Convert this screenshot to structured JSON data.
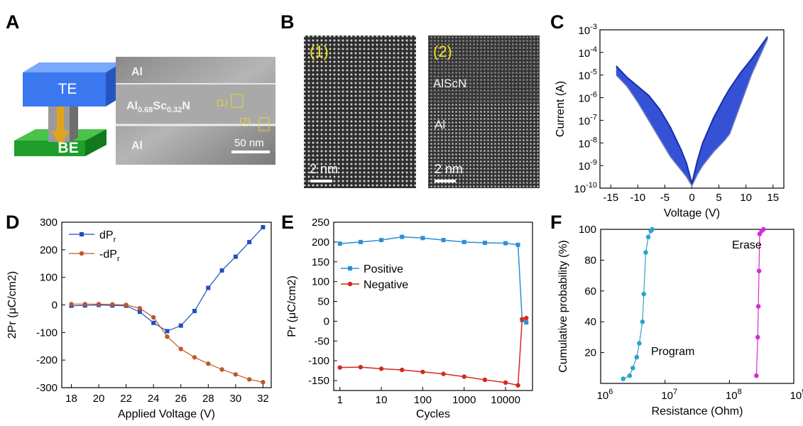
{
  "panels": {
    "A": {
      "label": "A",
      "device": {
        "top_electrode": "TE",
        "bottom_electrode": "BE"
      },
      "tem": {
        "layer_top": "Al",
        "layer_mid_base": "Al",
        "layer_mid_sub1": "0.68",
        "layer_mid_mid": "Sc",
        "layer_mid_sub2": "0.32",
        "layer_mid_end": "N",
        "layer_bot": "Al",
        "marker1": "(1)",
        "marker2": "(2)",
        "scalebar": "50 nm"
      }
    },
    "B": {
      "label": "B",
      "img1": {
        "tag": "(1)",
        "scalebar": "2 nm"
      },
      "img2": {
        "tag": "(2)",
        "layer1": "AlScN",
        "layer2": "Al",
        "scalebar": "2 nm"
      }
    },
    "C": {
      "label": "C"
    },
    "D": {
      "label": "D"
    },
    "E": {
      "label": "E"
    },
    "F": {
      "label": "F"
    }
  },
  "chart_data": [
    {
      "id": "C",
      "type": "line",
      "xlabel": "Voltage (V)",
      "ylabel": "Current (A)",
      "xlim": [
        -17,
        17
      ],
      "ylim_log10": [
        -10,
        -3
      ],
      "log_y": true,
      "xticks": [
        -15,
        -10,
        -5,
        0,
        5,
        10,
        15
      ],
      "yticks_exp": [
        -10,
        -9,
        -8,
        -7,
        -6,
        -5,
        -4,
        -3
      ],
      "color": "#1f3fd1",
      "series": [
        {
          "x": [
            -14,
            -12,
            -10,
            -8,
            -6,
            -4,
            -2,
            -1,
            0,
            1,
            2,
            4,
            6,
            7,
            9,
            11,
            14
          ],
          "log10_y_upper": [
            -4.6,
            -5.1,
            -5.5,
            -5.9,
            -6.5,
            -7.3,
            -8.3,
            -8.9,
            -9.8,
            -8.8,
            -8.0,
            -6.9,
            -6.0,
            -5.6,
            -4.9,
            -4.3,
            -3.3
          ],
          "log10_y_lower": [
            -5.0,
            -5.5,
            -6.2,
            -7.0,
            -7.8,
            -8.6,
            -9.2,
            -9.5,
            -9.9,
            -9.4,
            -9.0,
            -8.4,
            -7.9,
            -7.6,
            -6.3,
            -5.0,
            -3.4
          ]
        }
      ]
    },
    {
      "id": "D",
      "type": "line",
      "xlabel": "Applied Voltage (V)",
      "ylabel": "2Pr (μC/cm2)",
      "xlim": [
        17.3,
        32.6
      ],
      "ylim": [
        -300,
        300
      ],
      "xticks": [
        18,
        20,
        22,
        24,
        26,
        28,
        30,
        32
      ],
      "yticks": [
        -300,
        -200,
        -100,
        0,
        100,
        200,
        300
      ],
      "legend": [
        {
          "name_main": "dP",
          "name_sub": "r",
          "color": "#1f4fbf"
        },
        {
          "name_main": "-dP",
          "name_sub": "r",
          "color": "#c0582a"
        }
      ],
      "series": [
        {
          "x": [
            18,
            19,
            20,
            21,
            22,
            23,
            24,
            25,
            26,
            27,
            28,
            29,
            30,
            31,
            32
          ],
          "y": [
            -3,
            -2,
            0,
            -2,
            -3,
            -25,
            -65,
            -95,
            -75,
            -22,
            62,
            125,
            175,
            228,
            282
          ]
        },
        {
          "x": [
            18,
            19,
            20,
            21,
            22,
            23,
            24,
            25,
            26,
            27,
            28,
            29,
            30,
            31,
            32
          ],
          "y": [
            3,
            3,
            3,
            2,
            0,
            -12,
            -45,
            -115,
            -160,
            -190,
            -213,
            -234,
            -252,
            -270,
            -280
          ]
        }
      ]
    },
    {
      "id": "E",
      "type": "scatter",
      "xlabel": "Cycles",
      "ylabel": "Pr (μC/cm2)",
      "xlim_log10": [
        -0.15,
        4.65
      ],
      "ylim": [
        -175,
        250
      ],
      "log_x": true,
      "xticks": [
        "1",
        "10",
        "100",
        "1000",
        "10000"
      ],
      "yticks": [
        -150,
        -100,
        -50,
        0,
        50,
        100,
        150,
        200,
        250
      ],
      "legend": [
        {
          "name": "Positive",
          "color": "#2b8fd8"
        },
        {
          "name": "Negative",
          "color": "#d22a1e"
        }
      ],
      "series": [
        {
          "log10_x": [
            0.0,
            0.5,
            1.0,
            1.5,
            2.0,
            2.5,
            3.0,
            3.5,
            4.0,
            4.3,
            4.4,
            4.5
          ],
          "y": [
            196,
            200,
            205,
            213,
            210,
            205,
            200,
            198,
            197,
            193,
            3,
            -3
          ]
        },
        {
          "log10_x": [
            0.0,
            0.5,
            1.0,
            1.5,
            2.0,
            2.5,
            3.0,
            3.5,
            4.0,
            4.3,
            4.4,
            4.5
          ],
          "y": [
            -117,
            -116,
            -120,
            -123,
            -128,
            -133,
            -140,
            -148,
            -155,
            -162,
            5,
            8
          ]
        }
      ]
    },
    {
      "id": "F",
      "type": "scatter",
      "xlabel": "Resistance (Ohm)",
      "ylabel": "Cumulative probability (%)",
      "log_x": true,
      "xlim_log10": [
        6,
        9
      ],
      "ylim": [
        0,
        100
      ],
      "xticks_exp": [
        6,
        7,
        8,
        9
      ],
      "yticks": [
        20,
        40,
        60,
        80,
        100
      ],
      "annotations": [
        "Program",
        "Erase"
      ],
      "series": [
        {
          "name": "Program",
          "color": "#2ea3c9",
          "log10_x": [
            6.35,
            6.45,
            6.5,
            6.56,
            6.6,
            6.65,
            6.67,
            6.7,
            6.74,
            6.78,
            6.8
          ],
          "y": [
            3,
            5,
            10,
            17,
            26,
            40,
            58,
            85,
            95,
            99,
            100
          ]
        },
        {
          "name": "Erase",
          "color": "#d62bd6",
          "log10_x": [
            8.42,
            8.44,
            8.45,
            8.46,
            8.47,
            8.5,
            8.53
          ],
          "y": [
            5,
            30,
            50,
            73,
            97,
            99,
            100
          ]
        }
      ]
    }
  ]
}
